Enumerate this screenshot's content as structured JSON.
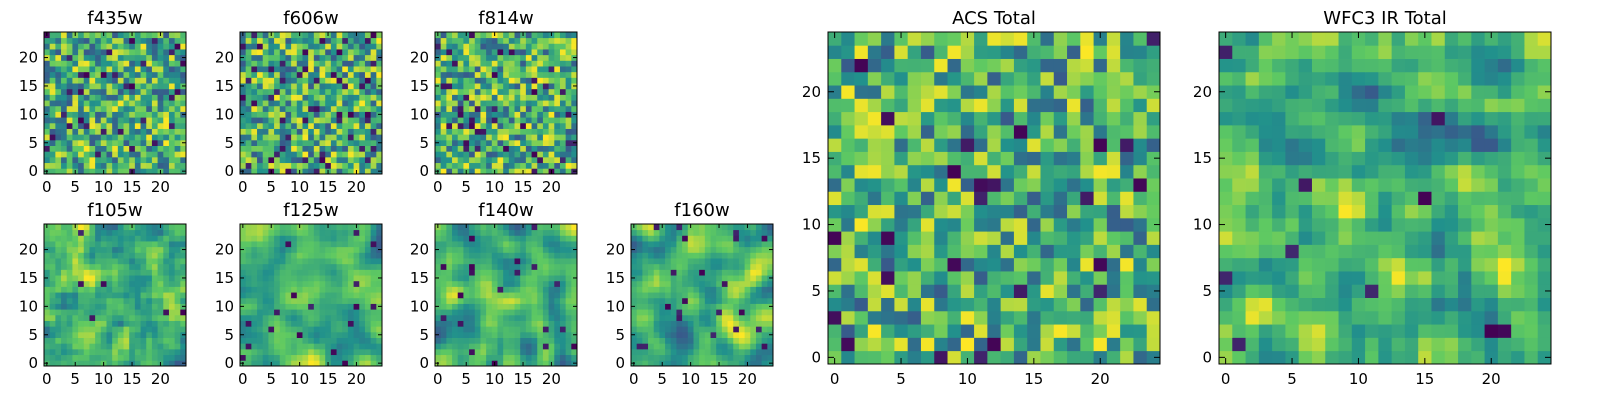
{
  "chart_data": [
    {
      "type": "heatmap",
      "title": "f435w",
      "grid": [
        25,
        25
      ],
      "colormap": "viridis",
      "xlim": [
        0,
        24
      ],
      "ylim": [
        0,
        24
      ],
      "xticks": [
        "0",
        "5",
        "10",
        "15",
        "20"
      ],
      "yticks": [
        "0",
        "5",
        "10",
        "15",
        "20"
      ],
      "seed": 11,
      "dark_fraction": 0.06,
      "smoothness": 0
    },
    {
      "type": "heatmap",
      "title": "f606w",
      "grid": [
        25,
        25
      ],
      "colormap": "viridis",
      "xlim": [
        0,
        24
      ],
      "ylim": [
        0,
        24
      ],
      "xticks": [
        "0",
        "5",
        "10",
        "15",
        "20"
      ],
      "yticks": [
        "0",
        "5",
        "10",
        "15",
        "20"
      ],
      "seed": 23,
      "dark_fraction": 0.07,
      "smoothness": 0
    },
    {
      "type": "heatmap",
      "title": "f814w",
      "grid": [
        25,
        25
      ],
      "colormap": "viridis",
      "xlim": [
        0,
        24
      ],
      "ylim": [
        0,
        24
      ],
      "xticks": [
        "0",
        "5",
        "10",
        "15",
        "20"
      ],
      "yticks": [
        "0",
        "5",
        "10",
        "15",
        "20"
      ],
      "seed": 37,
      "dark_fraction": 0.06,
      "smoothness": 0
    },
    {
      "type": "heatmap",
      "title": "f105w",
      "grid": [
        25,
        25
      ],
      "colormap": "viridis",
      "xlim": [
        0,
        24
      ],
      "ylim": [
        0,
        24
      ],
      "xticks": [
        "0",
        "5",
        "10",
        "15",
        "20"
      ],
      "yticks": [
        "0",
        "5",
        "10",
        "15",
        "20"
      ],
      "seed": 41,
      "dark_fraction": 0.02,
      "smoothness": 1
    },
    {
      "type": "heatmap",
      "title": "f125w",
      "grid": [
        25,
        25
      ],
      "colormap": "viridis",
      "xlim": [
        0,
        24
      ],
      "ylim": [
        0,
        24
      ],
      "xticks": [
        "0",
        "5",
        "10",
        "15",
        "20"
      ],
      "yticks": [
        "0",
        "5",
        "10",
        "15",
        "20"
      ],
      "seed": 53,
      "dark_fraction": 0.02,
      "smoothness": 2
    },
    {
      "type": "heatmap",
      "title": "f140w",
      "grid": [
        25,
        25
      ],
      "colormap": "viridis",
      "xlim": [
        0,
        24
      ],
      "ylim": [
        0,
        24
      ],
      "xticks": [
        "0",
        "5",
        "10",
        "15",
        "20"
      ],
      "yticks": [
        "0",
        "5",
        "10",
        "15",
        "20"
      ],
      "seed": 67,
      "dark_fraction": 0.02,
      "smoothness": 2
    },
    {
      "type": "heatmap",
      "title": "f160w",
      "grid": [
        25,
        25
      ],
      "colormap": "viridis",
      "xlim": [
        0,
        24
      ],
      "ylim": [
        0,
        24
      ],
      "xticks": [
        "0",
        "5",
        "10",
        "15",
        "20"
      ],
      "yticks": [
        "0",
        "5",
        "10",
        "15",
        "20"
      ],
      "seed": 79,
      "dark_fraction": 0.03,
      "smoothness": 2
    },
    {
      "type": "heatmap",
      "title": "ACS Total",
      "grid": [
        25,
        25
      ],
      "colormap": "viridis",
      "xlim": [
        0,
        24
      ],
      "ylim": [
        0,
        24
      ],
      "xticks": [
        "0",
        "5",
        "10",
        "15",
        "20"
      ],
      "yticks": [
        "0",
        "5",
        "10",
        "15",
        "20"
      ],
      "seed": 83,
      "dark_fraction": 0.03,
      "smoothness": 0
    },
    {
      "type": "heatmap",
      "title": "WFC3 IR Total",
      "grid": [
        25,
        25
      ],
      "colormap": "viridis",
      "xlim": [
        0,
        24
      ],
      "ylim": [
        0,
        24
      ],
      "xticks": [
        "0",
        "5",
        "10",
        "15",
        "20"
      ],
      "yticks": [
        "0",
        "5",
        "10",
        "15",
        "20"
      ],
      "seed": 97,
      "dark_fraction": 0.02,
      "smoothness": 1
    }
  ],
  "colors": {
    "viridis": [
      "#440154",
      "#3b528b",
      "#21918c",
      "#5ec962",
      "#fde725"
    ]
  }
}
